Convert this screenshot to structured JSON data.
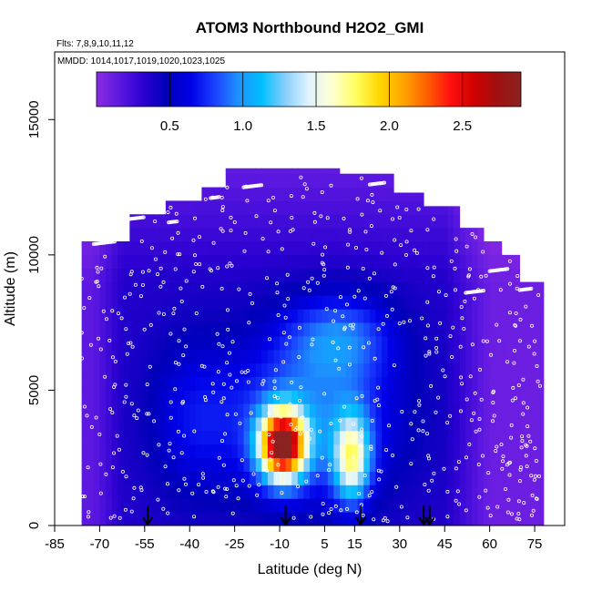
{
  "chart_data": {
    "type": "heatmap",
    "title": "ATOM3 Northbound H2O2_GMI",
    "flights_label": "Flts: 7,8,9,10,11,12",
    "dates_label": "MMDD: 1014,1017,1019,1020,1023,1025",
    "xlabel": "Latitude (deg N)",
    "ylabel": "Altitude (m)",
    "xlim": [
      -85,
      85
    ],
    "ylim": [
      0,
      17500
    ],
    "x_ticks": [
      "-85",
      "-70",
      "-55",
      "-40",
      "-25",
      "-10",
      "5",
      "15",
      "30",
      "45",
      "60",
      "75"
    ],
    "y_ticks": [
      "0",
      "5000",
      "10000",
      "15000"
    ],
    "colorbar": {
      "min": 0,
      "max": 2.9,
      "tick_labels": [
        "0.5",
        "1.0",
        "1.5",
        "2.0",
        "2.5"
      ],
      "colors": [
        "#8a2be2",
        "#5a17e0",
        "#2a00d0",
        "#0000b8",
        "#0000e8",
        "#1a40ff",
        "#1e90ff",
        "#00bfff",
        "#87cefa",
        "#e0f4ff",
        "#ffffd0",
        "#ffff60",
        "#ffd700",
        "#ffa500",
        "#ff6000",
        "#ff1010",
        "#d00000",
        "#a01010",
        "#8b2222"
      ]
    },
    "profile_latitudes": [
      -54,
      -8,
      17,
      38,
      40
    ],
    "colors": {
      "background": "#ffffff",
      "points": "#ffffff",
      "arrows": "#000000"
    }
  }
}
